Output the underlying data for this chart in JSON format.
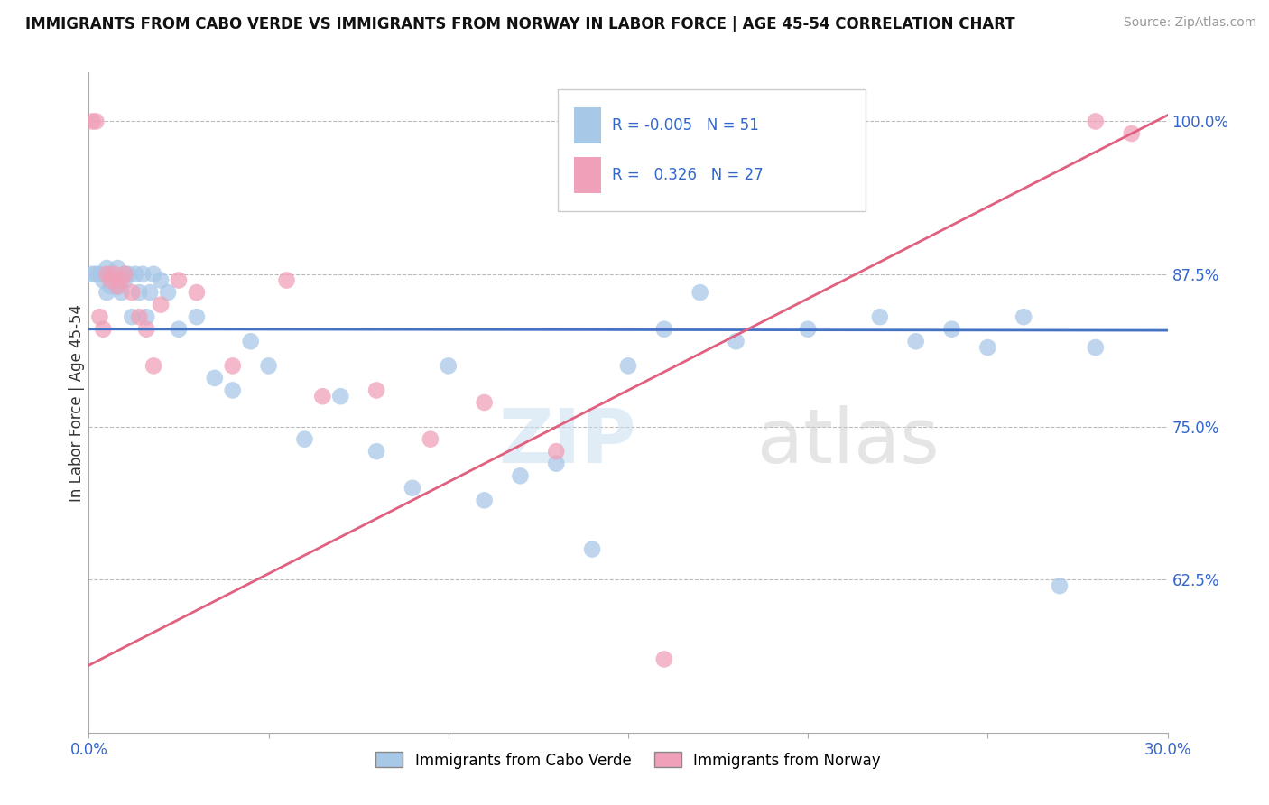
{
  "title": "IMMIGRANTS FROM CABO VERDE VS IMMIGRANTS FROM NORWAY IN LABOR FORCE | AGE 45-54 CORRELATION CHART",
  "source": "Source: ZipAtlas.com",
  "ylabel": "In Labor Force | Age 45-54",
  "x_min": 0.0,
  "x_max": 0.3,
  "y_min": 0.5,
  "y_max": 1.04,
  "y_ticks": [
    0.625,
    0.75,
    0.875,
    1.0
  ],
  "y_tick_labels": [
    "62.5%",
    "75.0%",
    "87.5%",
    "100.0%"
  ],
  "cabo_verde_R": -0.005,
  "cabo_verde_N": 51,
  "norway_R": 0.326,
  "norway_N": 27,
  "cabo_verde_color": "#a8c8e8",
  "norway_color": "#f0a0b8",
  "cabo_verde_line_color": "#4472c4",
  "norway_line_color": "#e06080",
  "legend_label_1": "Immigrants from Cabo Verde",
  "legend_label_2": "Immigrants from Norway",
  "cabo_x": [
    0.001,
    0.002,
    0.003,
    0.004,
    0.005,
    0.005,
    0.006,
    0.006,
    0.007,
    0.008,
    0.008,
    0.009,
    0.01,
    0.01,
    0.011,
    0.012,
    0.013,
    0.014,
    0.015,
    0.016,
    0.017,
    0.018,
    0.02,
    0.022,
    0.025,
    0.03,
    0.035,
    0.04,
    0.045,
    0.05,
    0.06,
    0.07,
    0.08,
    0.09,
    0.1,
    0.11,
    0.12,
    0.13,
    0.14,
    0.15,
    0.16,
    0.17,
    0.18,
    0.2,
    0.22,
    0.23,
    0.24,
    0.25,
    0.26,
    0.27,
    0.28
  ],
  "cabo_y": [
    0.875,
    0.875,
    0.875,
    0.87,
    0.88,
    0.86,
    0.875,
    0.865,
    0.87,
    0.88,
    0.865,
    0.86,
    0.875,
    0.87,
    0.875,
    0.84,
    0.875,
    0.86,
    0.875,
    0.84,
    0.86,
    0.875,
    0.87,
    0.86,
    0.83,
    0.84,
    0.79,
    0.78,
    0.82,
    0.8,
    0.74,
    0.775,
    0.73,
    0.7,
    0.8,
    0.69,
    0.71,
    0.72,
    0.65,
    0.8,
    0.83,
    0.86,
    0.82,
    0.83,
    0.84,
    0.82,
    0.83,
    0.815,
    0.84,
    0.62,
    0.815
  ],
  "norway_x": [
    0.001,
    0.002,
    0.003,
    0.004,
    0.005,
    0.006,
    0.007,
    0.008,
    0.009,
    0.01,
    0.012,
    0.014,
    0.016,
    0.018,
    0.02,
    0.025,
    0.03,
    0.04,
    0.055,
    0.065,
    0.08,
    0.095,
    0.11,
    0.13,
    0.16,
    0.28,
    0.29
  ],
  "norway_y": [
    1.0,
    1.0,
    0.84,
    0.83,
    0.875,
    0.87,
    0.875,
    0.865,
    0.87,
    0.875,
    0.86,
    0.84,
    0.83,
    0.8,
    0.85,
    0.87,
    0.86,
    0.8,
    0.87,
    0.775,
    0.78,
    0.74,
    0.77,
    0.73,
    0.56,
    1.0,
    0.99
  ],
  "cabo_line_x0": 0.0,
  "cabo_line_x1": 0.3,
  "cabo_line_y0": 0.83,
  "cabo_line_y1": 0.829,
  "norway_line_x0": 0.0,
  "norway_line_x1": 0.3,
  "norway_line_y0": 0.555,
  "norway_line_y1": 1.005
}
